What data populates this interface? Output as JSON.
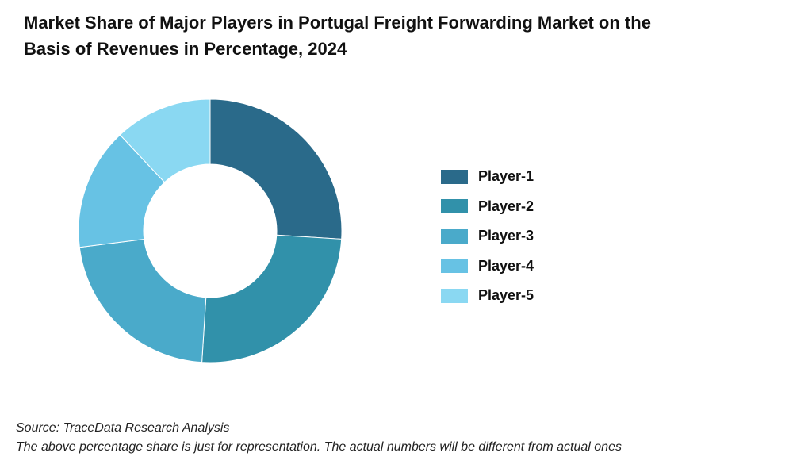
{
  "title": {
    "line1": "Market Share of Major Players in Portugal Freight Forwarding Market on the",
    "line2": "Basis of Revenues in Percentage, 2024"
  },
  "chart_data": {
    "type": "pie",
    "categories": [
      "Player-1",
      "Player-2",
      "Player-3",
      "Player-4",
      "Player-5"
    ],
    "values": [
      26,
      25,
      22,
      15,
      12
    ],
    "colors": [
      "#2a6a8a",
      "#3191aa",
      "#4aaaca",
      "#67c2e4",
      "#8ad8f2"
    ],
    "legend_position": "right",
    "style": "donut"
  },
  "footer": {
    "source": "Source: TraceData Research Analysis",
    "note": "The above percentage share is just for representation. The actual numbers will be different from actual ones"
  }
}
